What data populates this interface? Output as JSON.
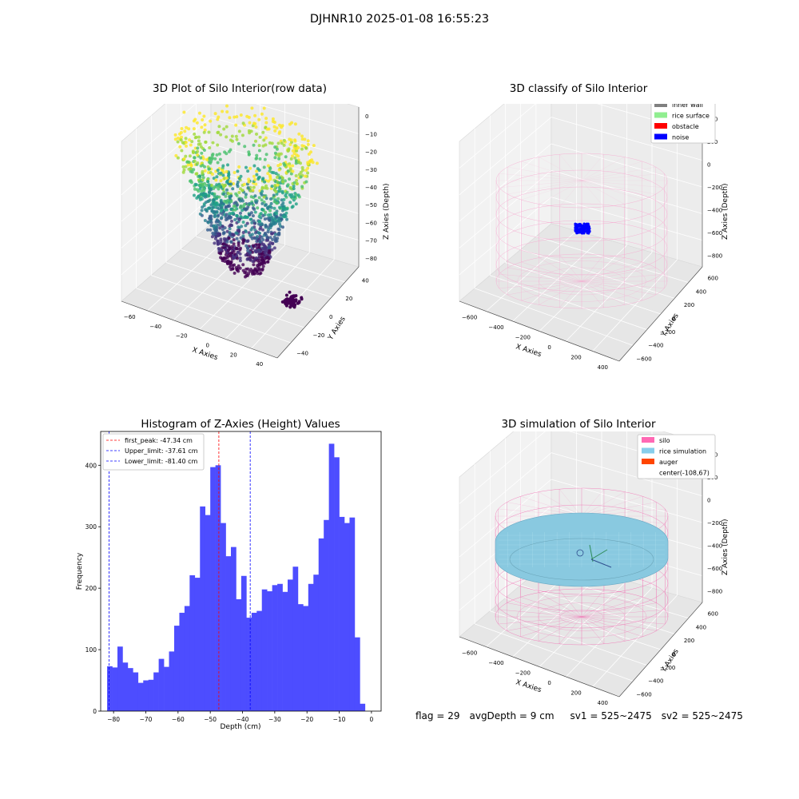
{
  "suptitle": "DJHNR10 2025-01-08 16:55:23",
  "panels": {
    "raw": {
      "title": "3D Plot of Silo Interior(row data)",
      "xlabel": "X Axies",
      "ylabel": "Y Axies",
      "zlabel": "Z Axies (Depth)",
      "x_ticks": [
        "−60",
        "−40",
        "−20",
        "0",
        "20",
        "40"
      ],
      "y_ticks": [
        "−40",
        "−20",
        "0",
        "20",
        "40"
      ],
      "z_ticks": [
        "0",
        "−10",
        "−20",
        "−30",
        "−40",
        "−50",
        "−60",
        "−70",
        "−80"
      ]
    },
    "classify": {
      "title": "3D classify of Silo Interior",
      "xlabel": "X Axies",
      "ylabel": "Y Axies",
      "zlabel": "Z Axies (Depth)",
      "x_ticks": [
        "−600",
        "−400",
        "−200",
        "0",
        "200",
        "400"
      ],
      "y_ticks": [
        "−600",
        "−400",
        "−200",
        "0",
        "200",
        "400",
        "600"
      ],
      "z_ticks": [
        "400",
        "200",
        "0",
        "−200",
        "−400",
        "−600",
        "−800"
      ],
      "legend": [
        {
          "label": "inner wall",
          "color": "#808080"
        },
        {
          "label": "rice surface",
          "color": "#90ee90"
        },
        {
          "label": "obstacle",
          "color": "#ff0000"
        },
        {
          "label": "noise",
          "color": "#0000ff"
        }
      ]
    },
    "simulation": {
      "title": "3D simulation of Silo Interior",
      "xlabel": "X Axies",
      "ylabel": "Y Axies",
      "zlabel": "Z Axies (Depth)",
      "x_ticks": [
        "−600",
        "−400",
        "−200",
        "0",
        "200",
        "400"
      ],
      "y_ticks": [
        "−600",
        "−400",
        "−200",
        "0",
        "200",
        "400",
        "600"
      ],
      "z_ticks": [
        "400",
        "200",
        "0",
        "−200",
        "−400",
        "−600",
        "−800"
      ],
      "legend": [
        {
          "label": "silo",
          "color": "#ff69b4"
        },
        {
          "label": "rice simulation",
          "color": "#87ceeb"
        },
        {
          "label": "auger",
          "color": "#ff4500"
        },
        {
          "label": "center(-108,67)",
          "color": ""
        }
      ]
    }
  },
  "status": {
    "flag": "flag = 29",
    "avg": "avgDepth = 9 cm",
    "sv1": "sv1 = 525~2475",
    "sv2": "sv2 = 525~2475"
  },
  "chart_data": [
    {
      "type": "scatter",
      "title": "3D Plot of Silo Interior(row data)",
      "xlabel": "X Axies",
      "ylabel": "Y Axies",
      "zlabel": "Z Axies (Depth)",
      "xlim": [
        -70,
        50
      ],
      "ylim": [
        -50,
        50
      ],
      "zlim": [
        -85,
        5
      ],
      "colormap": "viridis"
    },
    {
      "type": "scatter",
      "title": "3D classify of Silo Interior",
      "xlabel": "X Axies",
      "ylabel": "Y Axies",
      "zlabel": "Z Axies (Depth)",
      "xlim": [
        -700,
        500
      ],
      "ylim": [
        -650,
        650
      ],
      "zlim": [
        -850,
        450
      ],
      "series": [
        {
          "name": "inner wall"
        },
        {
          "name": "rice surface"
        },
        {
          "name": "obstacle"
        },
        {
          "name": "noise"
        }
      ]
    },
    {
      "type": "histogram",
      "title": "Histogram of Z-Axies (Height) Values",
      "xlabel": "Depth (cm)",
      "ylabel": "Frequency",
      "x_ticks": [
        -80,
        -70,
        -60,
        -50,
        -40,
        -30,
        -20,
        -10,
        0
      ],
      "y_ticks": [
        0,
        100,
        200,
        300,
        400
      ],
      "xlim": [
        -84,
        3
      ],
      "ylim": [
        0,
        455
      ],
      "bin_start": -82,
      "bin_width": 1.6,
      "counts": [
        73,
        71,
        105,
        79,
        70,
        63,
        46,
        50,
        51,
        63,
        85,
        72,
        97,
        139,
        160,
        171,
        221,
        217,
        333,
        319,
        397,
        400,
        306,
        252,
        267,
        182,
        220,
        152,
        160,
        163,
        198,
        195,
        205,
        207,
        194,
        214,
        235,
        174,
        171,
        207,
        222,
        281,
        311,
        435,
        413,
        316,
        306,
        315,
        120,
        12
      ],
      "vlines": [
        {
          "label": "first_peak: -47.34 cm",
          "value": -47.34,
          "color": "#ff0000"
        },
        {
          "label": "Upper_limit: -37.61 cm",
          "value": -37.61,
          "color": "#0000ff"
        },
        {
          "label": "Lower_limit: -81.40 cm",
          "value": -81.4,
          "color": "#0000ff"
        }
      ],
      "bar_color": "#4d4dff"
    },
    {
      "type": "surface",
      "title": "3D simulation of Silo Interior",
      "xlabel": "X Axies",
      "ylabel": "Y Axies",
      "zlabel": "Z Axies (Depth)",
      "xlim": [
        -700,
        500
      ],
      "ylim": [
        -650,
        650
      ],
      "zlim": [
        -850,
        450
      ],
      "series": [
        {
          "name": "silo"
        },
        {
          "name": "rice simulation"
        },
        {
          "name": "auger"
        },
        {
          "name": "center(-108,67)"
        }
      ]
    }
  ]
}
